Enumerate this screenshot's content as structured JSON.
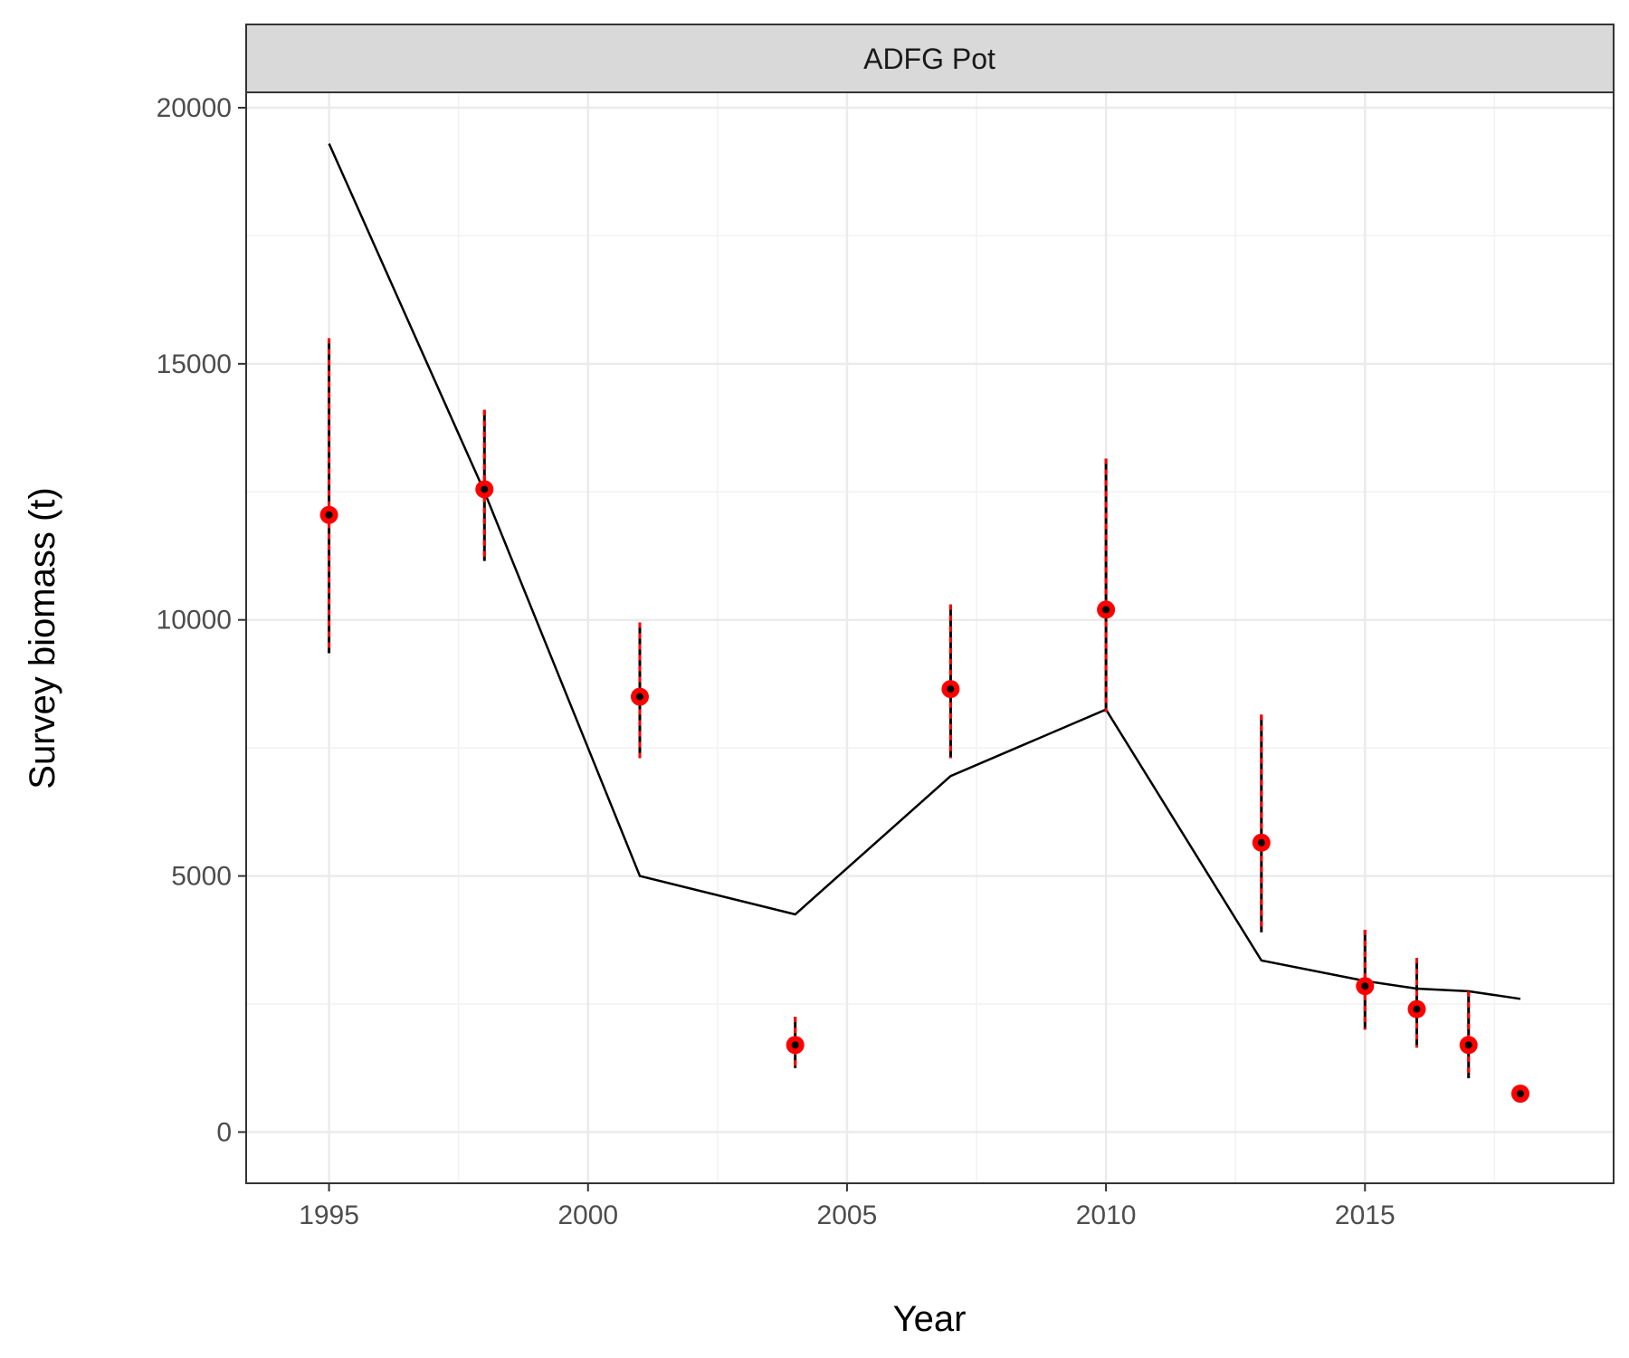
{
  "chart_data": {
    "type": "scatter",
    "facet_label": "ADFG Pot",
    "xlabel": "Year",
    "ylabel": "Survey biomass (t)",
    "xlim": [
      1993.4,
      2019.8
    ],
    "ylim": [
      -1000,
      20300
    ],
    "x_ticks": [
      1995,
      2000,
      2005,
      2010,
      2015
    ],
    "x_tick_labels": [
      "1995",
      "2000",
      "2005",
      "2010",
      "2015"
    ],
    "y_ticks": [
      0,
      5000,
      10000,
      15000,
      20000
    ],
    "y_tick_labels": [
      "0",
      "5000",
      "10000",
      "15000",
      "20000"
    ],
    "grid": true,
    "colors": {
      "points": "#ff0000",
      "point_center": "#000000",
      "line": "#000000",
      "strip_fill": "#d9d9d9"
    },
    "series": [
      {
        "kind": "observed",
        "x": [
          1995,
          1998,
          2001,
          2004,
          2007,
          2010,
          2013,
          2015,
          2016,
          2017,
          2018
        ],
        "y": [
          12050,
          12550,
          8500,
          1700,
          8650,
          10200,
          5650,
          2850,
          2400,
          1700,
          750
        ],
        "lower": [
          9350,
          11150,
          7300,
          1250,
          7300,
          8200,
          3900,
          2000,
          1650,
          1050,
          650
        ],
        "upper": [
          15500,
          14100,
          9950,
          2250,
          10300,
          13150,
          8150,
          3950,
          3400,
          2750,
          850
        ]
      },
      {
        "kind": "predicted",
        "x": [
          1995,
          1998,
          2001,
          2004,
          2007,
          2010,
          2013,
          2015,
          2016,
          2017,
          2018
        ],
        "y": [
          19300,
          12500,
          5000,
          4250,
          6950,
          8250,
          3350,
          2950,
          2800,
          2750,
          2600
        ]
      }
    ]
  }
}
